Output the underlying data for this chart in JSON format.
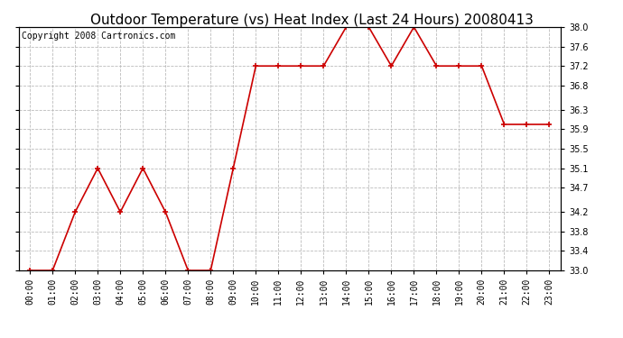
{
  "title": "Outdoor Temperature (vs) Heat Index (Last 24 Hours) 20080413",
  "copyright": "Copyright 2008 Cartronics.com",
  "x_labels": [
    "00:00",
    "01:00",
    "02:00",
    "03:00",
    "04:00",
    "05:00",
    "06:00",
    "07:00",
    "08:00",
    "09:00",
    "10:00",
    "11:00",
    "12:00",
    "13:00",
    "14:00",
    "15:00",
    "16:00",
    "17:00",
    "18:00",
    "19:00",
    "20:00",
    "21:00",
    "22:00",
    "23:00"
  ],
  "y_values": [
    33.0,
    33.0,
    34.2,
    35.1,
    34.2,
    35.1,
    34.2,
    33.0,
    33.0,
    35.1,
    37.2,
    37.2,
    37.2,
    37.2,
    38.0,
    38.0,
    37.2,
    38.0,
    37.2,
    37.2,
    37.2,
    36.0,
    36.0,
    36.0
  ],
  "line_color": "#cc0000",
  "marker": "+",
  "marker_size": 5,
  "marker_linewidth": 1.2,
  "linewidth": 1.2,
  "ylim": [
    33.0,
    38.0
  ],
  "y_ticks": [
    33.0,
    33.4,
    33.8,
    34.2,
    34.7,
    35.1,
    35.5,
    35.9,
    36.3,
    36.8,
    37.2,
    37.6,
    38.0
  ],
  "bg_color": "#ffffff",
  "plot_bg_color": "#ffffff",
  "grid_color": "#bbbbbb",
  "title_fontsize": 11,
  "tick_fontsize": 7,
  "copyright_fontsize": 7
}
